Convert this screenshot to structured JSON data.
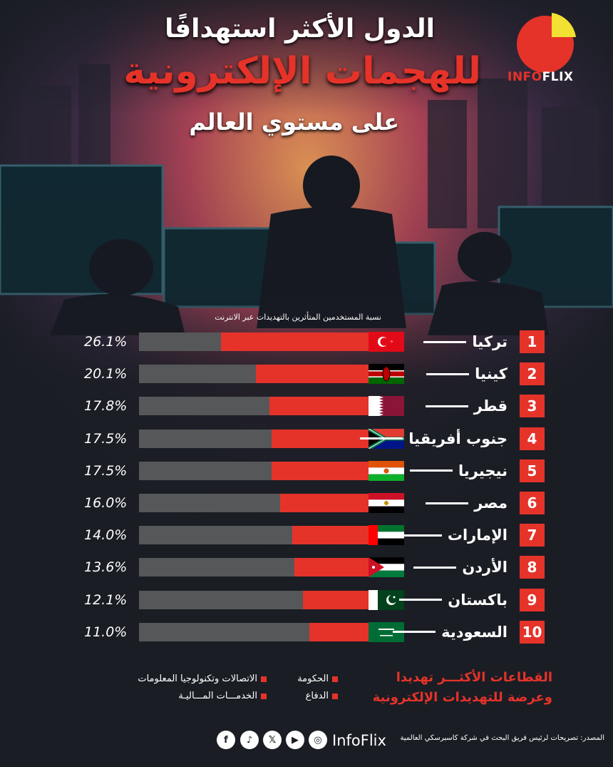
{
  "header": {
    "line1": "الدول الأكثر استهدافًا",
    "line2": "للهجمات الإلكترونية",
    "line3": "على مستوي العالم"
  },
  "logo": {
    "info": "INFO",
    "flix": "FLIX",
    "accent": "#e5332a",
    "secondary": "#f2e133"
  },
  "chart_data": {
    "type": "bar",
    "title": "نسبة المستخدمين المتأثرين بالتهديدات عبر الانترنت",
    "categories": [
      "تركيا",
      "كينيا",
      "قطر",
      "جنوب أفريقيا",
      "نيجيريا",
      "مصر",
      "الإمارات",
      "الأردن",
      "باكستان",
      "السعودية"
    ],
    "ranks": [
      "1",
      "2",
      "3",
      "4",
      "5",
      "6",
      "7",
      "8",
      "9",
      "10"
    ],
    "values": [
      26.1,
      20.1,
      17.8,
      17.5,
      17.5,
      16.0,
      14.0,
      13.6,
      12.1,
      11.0
    ],
    "value_labels": [
      "26.1%",
      "20.1%",
      "17.8%",
      "17.5%",
      "17.5%",
      "16.0%",
      "14.0%",
      "13.6%",
      "12.1%",
      "11.0%"
    ],
    "flags": [
      "turkey-flag-icon",
      "kenya-flag-icon",
      "qatar-flag-icon",
      "south-africa-flag-icon",
      "niger-flag-icon",
      "egypt-flag-icon",
      "uae-flag-icon",
      "jordan-flag-icon",
      "pakistan-flag-icon",
      "saudi-flag-icon"
    ],
    "bar_color": "#e5332a",
    "track_color": "#555759",
    "xlim": [
      0,
      40
    ]
  },
  "legend": {
    "title_line1": "القطاعات الأكثـــر تهديدا",
    "title_line2": "وعرضة للتهديدات الإلكترونية",
    "items": [
      "الحكومة",
      "الاتصالات وتكنولوجيا المعلومات",
      "الدفاع",
      "الخدمـــات المـــاليـة"
    ]
  },
  "footer": {
    "source": "المصدر: تصريحات لرئيس فريق البحث في شركة كاسبرسكي العالمية",
    "brand": "InfoFlix",
    "social_icons": [
      "facebook-icon",
      "tiktok-icon",
      "x-icon",
      "youtube-icon",
      "instagram-icon"
    ]
  }
}
